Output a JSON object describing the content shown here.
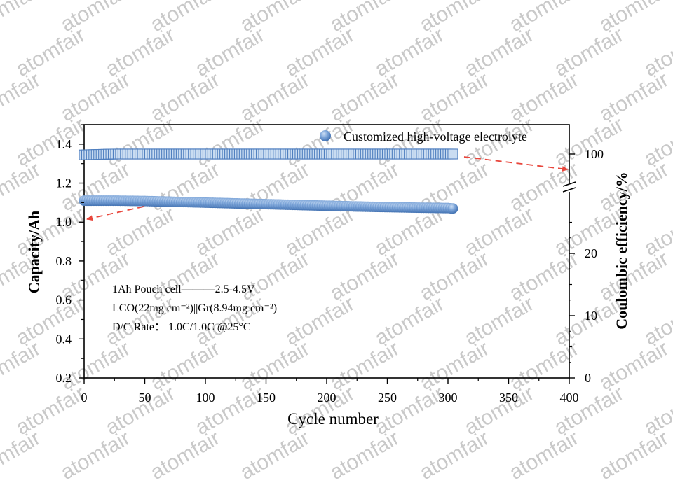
{
  "watermark": {
    "text": "atomfair"
  },
  "chart_data": {
    "type": "scatter",
    "xlabel": "Cycle number",
    "ylabel_left": "Capacity/Ah",
    "ylabel_right": "Coulombic efficiency/%",
    "xlim": [
      0,
      400
    ],
    "xticks": [
      0,
      50,
      100,
      150,
      200,
      250,
      300,
      350,
      400
    ],
    "ylim_left": [
      0.2,
      1.5
    ],
    "yticks_left": [
      0.2,
      0.4,
      0.6,
      0.8,
      1.0,
      1.2,
      1.4
    ],
    "ytick_labels_left": [
      "0.2",
      "0.4",
      "0.6",
      "0.8",
      "1.0",
      "1.2",
      "1.4"
    ],
    "right_axis_broken": true,
    "yticks_right": [
      0,
      10,
      20,
      100
    ],
    "grid": false,
    "legend": {
      "position": "top-right",
      "entries": [
        "Customized high-voltage electrolyte"
      ]
    },
    "annotations": [
      "1Ah Pouch cell———2.5-4.5V",
      "LCO(22mg cm⁻²)||Gr(8.94mg cm⁻²)",
      "D/C Rate： 1.0C/1.0C @25°C"
    ],
    "series": [
      {
        "name": "Customized high-voltage electrolyte",
        "quantity": "capacity",
        "axis": "left",
        "color": "#5b8fcf",
        "x": [
          0,
          25,
          50,
          75,
          100,
          125,
          150,
          175,
          200,
          225,
          250,
          275,
          300,
          304
        ],
        "values": [
          1.11,
          1.11,
          1.108,
          1.104,
          1.1,
          1.096,
          1.092,
          1.088,
          1.084,
          1.08,
          1.077,
          1.074,
          1.072,
          1.07
        ]
      },
      {
        "quantity": "coulombic_efficiency",
        "axis": "right",
        "color": "#5b8fcf",
        "x": [
          0,
          25,
          50,
          75,
          100,
          125,
          150,
          175,
          200,
          225,
          250,
          275,
          300,
          304
        ],
        "values": [
          99.9,
          100.0,
          100.0,
          100.0,
          100.0,
          100.0,
          100.0,
          100.0,
          100.0,
          100.0,
          100.0,
          100.0,
          100.0,
          100.0
        ]
      }
    ]
  }
}
